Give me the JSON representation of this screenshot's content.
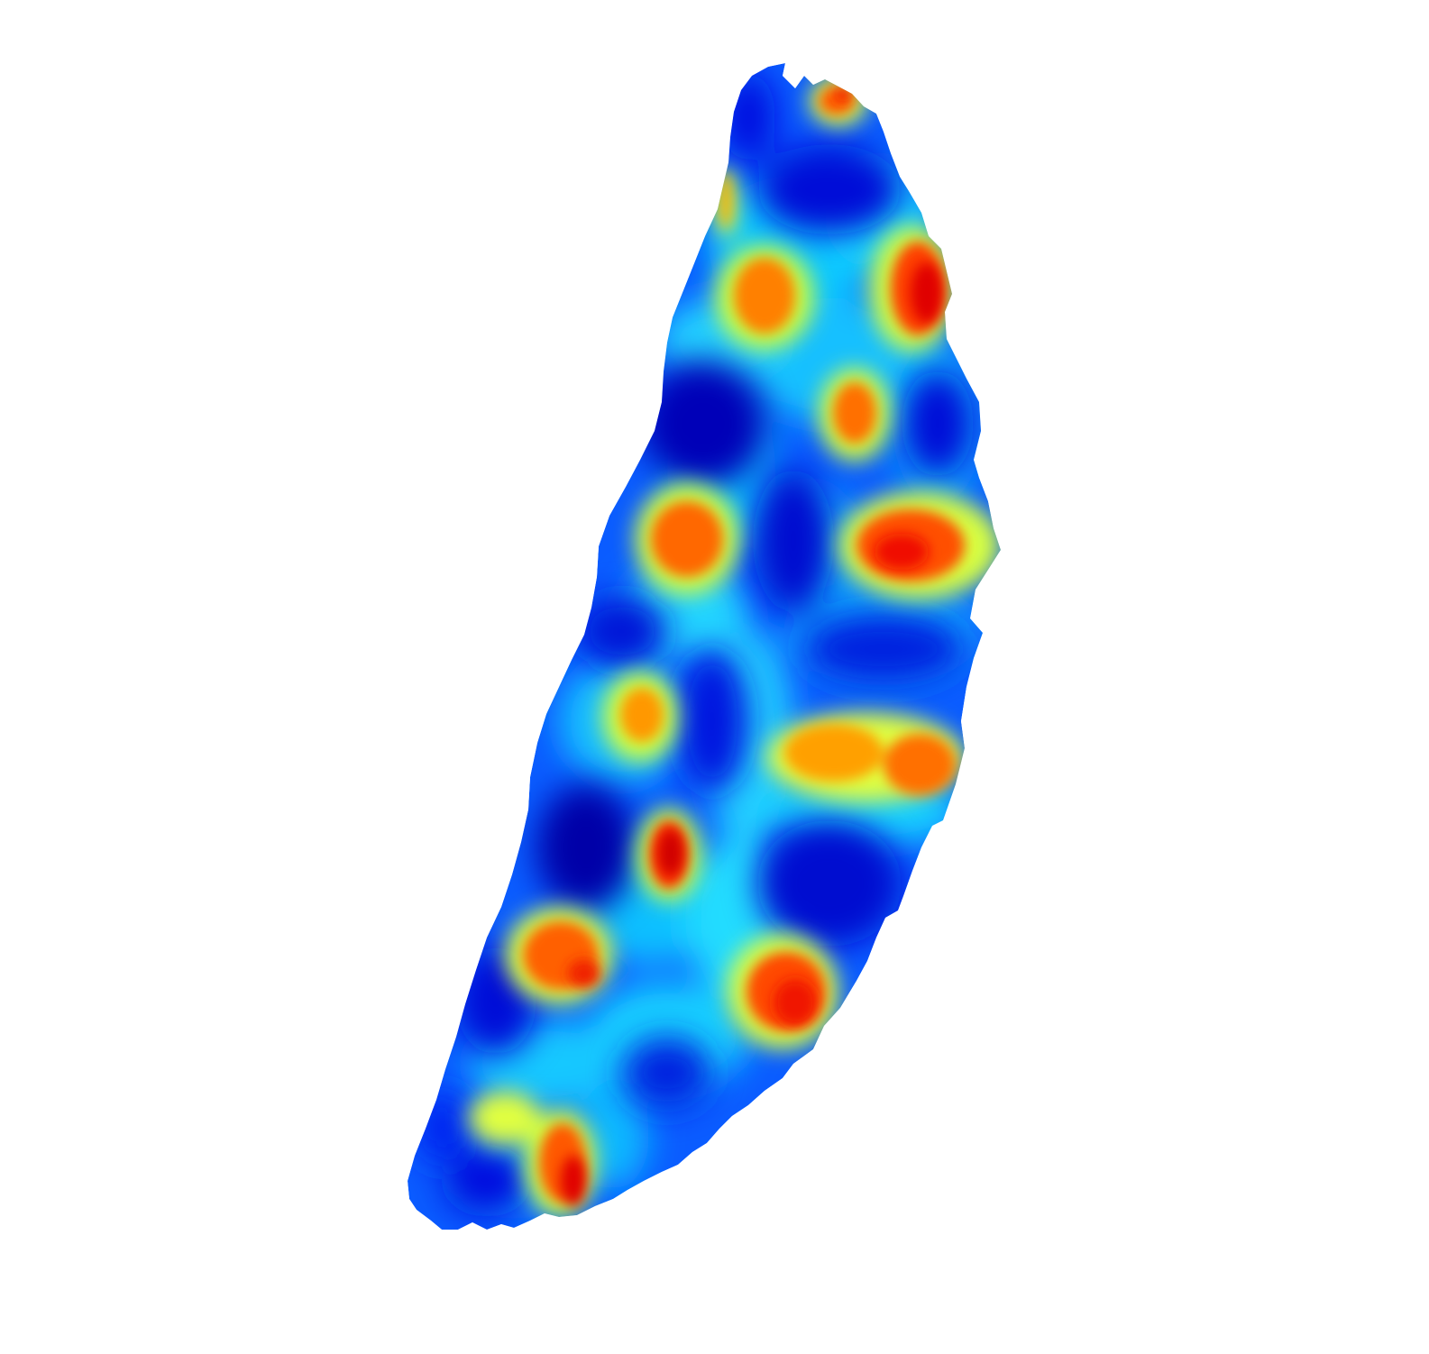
{
  "figure": {
    "background": "#ffffff",
    "colormap": "jet",
    "colormap_stops": [
      "#00008f",
      "#0000ff",
      "#0080ff",
      "#00ffff",
      "#80ff80",
      "#ffff00",
      "#ff8000",
      "#ff0000",
      "#800000"
    ],
    "base_color": "#0a5cff",
    "has_axes": false,
    "has_colorbar": false,
    "has_text": false
  }
}
